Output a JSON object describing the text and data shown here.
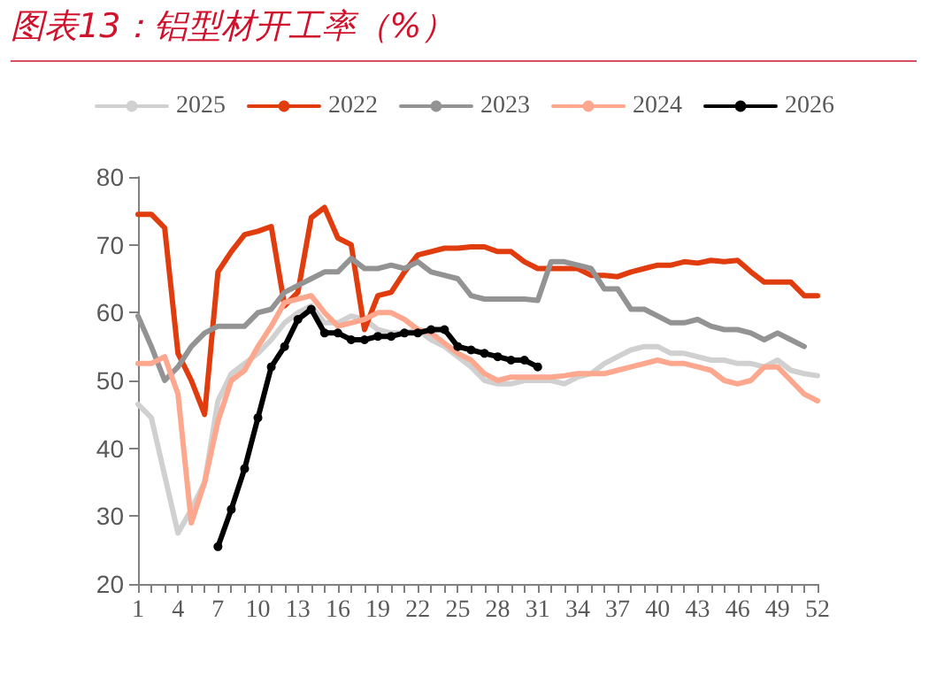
{
  "chart_data": {
    "type": "line",
    "title": "图表13：铝型材开工率（%）",
    "categories": [
      "1",
      null,
      null,
      "4",
      null,
      null,
      "7",
      null,
      null,
      "10",
      null,
      null,
      "13",
      null,
      null,
      "16",
      null,
      null,
      "19",
      null,
      null,
      "22",
      null,
      null,
      "25",
      null,
      null,
      "28",
      null,
      null,
      "31",
      null,
      null,
      "34",
      null,
      null,
      "37",
      null,
      null,
      "40",
      null,
      null,
      "43",
      null,
      null,
      "46",
      null,
      null,
      "49",
      null,
      null,
      "52"
    ],
    "ylim": [
      20,
      80
    ],
    "yticks": [
      20,
      30,
      40,
      50,
      60,
      70,
      80
    ],
    "grid": false,
    "legend": "top",
    "line_style": "solid",
    "series": [
      {
        "name": "2025",
        "color": "#d0d0d0",
        "values": [
          46.5,
          44.5,
          36,
          27.5,
          31,
          35,
          47,
          51,
          52.5,
          54,
          56,
          58.5,
          60,
          61,
          58.5,
          58.5,
          59.5,
          59,
          57.5,
          57,
          57,
          57.5,
          56,
          55,
          53.5,
          52,
          50,
          49.5,
          49.5,
          50,
          50,
          50,
          49.5,
          50.5,
          51,
          52.5,
          53.5,
          54.5,
          55,
          55,
          54,
          54,
          53.5,
          53,
          53,
          52.5,
          52.5,
          52,
          53,
          51.5,
          51,
          50.7
        ]
      },
      {
        "name": "2022",
        "color": "#e03c0e",
        "values": [
          74.5,
          74.5,
          72.5,
          54,
          50,
          45,
          66,
          69,
          71.5,
          72,
          72.7,
          61,
          63,
          74,
          75.5,
          71,
          70,
          57.5,
          62.5,
          63,
          66,
          68.5,
          69,
          69.5,
          69.5,
          69.7,
          69.7,
          69,
          69,
          67.5,
          66.5,
          66.5,
          66.5,
          66.5,
          65.5,
          65.5,
          65.3,
          66,
          66.5,
          67,
          67,
          67.5,
          67.3,
          67.7,
          67.5,
          67.7,
          66,
          64.5,
          64.5,
          64.5,
          62.5,
          62.5
        ]
      },
      {
        "name": "2023",
        "color": "#939393",
        "values": [
          59.5,
          55,
          50,
          52,
          55,
          57,
          58,
          58,
          58,
          60,
          60.5,
          63,
          64,
          65,
          66,
          66,
          68,
          66.5,
          66.5,
          67,
          66.5,
          67.5,
          66,
          65.5,
          65,
          62.5,
          62,
          62,
          62,
          62,
          61.8,
          67.5,
          67.5,
          67,
          66.5,
          63.5,
          63.5,
          60.5,
          60.5,
          59.5,
          58.5,
          58.5,
          59,
          58,
          57.5,
          57.5,
          57,
          56,
          57,
          56,
          55,
          null
        ]
      },
      {
        "name": "2024",
        "color": "#fca78e",
        "values": [
          52.5,
          52.5,
          53.5,
          48,
          29,
          35,
          44,
          50,
          51.5,
          55,
          58,
          61.5,
          62,
          62.5,
          60,
          58,
          58.5,
          59,
          60,
          60,
          59,
          57.5,
          57,
          55.5,
          54,
          53,
          51,
          50,
          50.5,
          50.5,
          50.5,
          50.5,
          50.7,
          51,
          51,
          51,
          51.5,
          52,
          52.5,
          53,
          52.5,
          52.5,
          52,
          51.5,
          50,
          49.5,
          50,
          52,
          52,
          50,
          48,
          47
        ]
      },
      {
        "name": "2026",
        "color": "#000000",
        "marker": "circle",
        "values": [
          null,
          null,
          null,
          null,
          null,
          null,
          25.5,
          31,
          37,
          44.5,
          52,
          55,
          59,
          60.5,
          57,
          57,
          56,
          56,
          56.5,
          56.5,
          57,
          57,
          57.5,
          57.5,
          55,
          54.5,
          54,
          53.5,
          53,
          53,
          52,
          null,
          null,
          null,
          null,
          null,
          null,
          null,
          null,
          null,
          null,
          null,
          null,
          null,
          null,
          null,
          null,
          null,
          null,
          null,
          null,
          null
        ]
      }
    ]
  }
}
